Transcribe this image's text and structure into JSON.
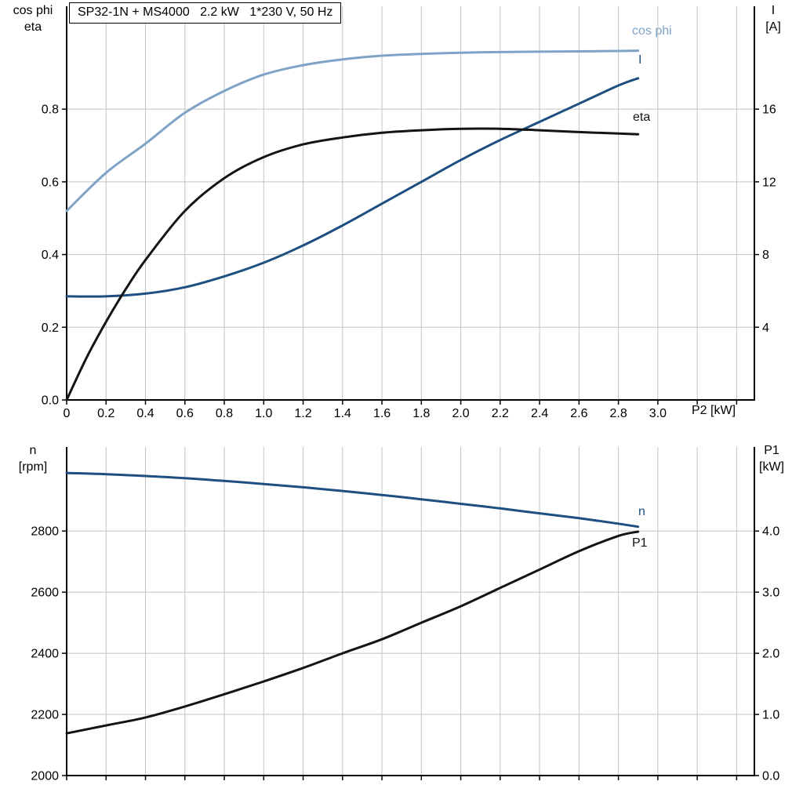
{
  "colors": {
    "light_blue": "#7fa3c6",
    "dark_blue": "#1d5080",
    "black": "#141414",
    "grid": "#c3c3c3",
    "axis": "#000000"
  },
  "chart_data": [
    {
      "id": "top",
      "type": "line",
      "title": "SP32-1N + MS4000   2.2 kW   1*230 V, 50 Hz",
      "x_axis": {
        "label": "P2 [kW]",
        "range": [
          0,
          3.49
        ],
        "ticks": [
          0,
          0.2,
          0.4,
          0.6,
          0.8,
          1.0,
          1.2,
          1.4,
          1.6,
          1.8,
          2.0,
          2.2,
          2.4,
          2.6,
          2.8,
          3.0
        ],
        "tick_labels": [
          "0",
          "0.2",
          "0.4",
          "0.6",
          "0.8",
          "1.0",
          "1.2",
          "1.4",
          "1.6",
          "1.8",
          "2.0",
          "2.2",
          "2.4",
          "2.6",
          "2.8",
          "3.0"
        ]
      },
      "y_left": {
        "label_lines": [
          "cos phi",
          "eta"
        ],
        "range": [
          0,
          1.083
        ],
        "ticks": [
          0,
          0.2,
          0.4,
          0.6,
          0.8
        ],
        "tick_labels": [
          "0.0",
          "0.2",
          "0.4",
          "0.6",
          "0.8"
        ]
      },
      "y_right": {
        "label_lines": [
          "I",
          "[A]"
        ],
        "range": [
          0,
          21.66
        ],
        "ticks": [
          4,
          8,
          12,
          16
        ],
        "tick_labels": [
          "4",
          "8",
          "12",
          "16"
        ]
      },
      "series": [
        {
          "name": "cos-phi",
          "label": "cos phi",
          "axis": "left",
          "color_key": "light_blue",
          "x": [
            0,
            0.2,
            0.4,
            0.6,
            0.8,
            1.0,
            1.2,
            1.4,
            1.6,
            1.8,
            2.0,
            2.2,
            2.4,
            2.6,
            2.8,
            2.9
          ],
          "y": [
            0.52,
            0.625,
            0.705,
            0.79,
            0.85,
            0.895,
            0.921,
            0.937,
            0.947,
            0.952,
            0.955,
            0.957,
            0.958,
            0.959,
            0.96,
            0.961
          ]
        },
        {
          "name": "current",
          "label": "I",
          "axis": "right",
          "color_key": "dark_blue",
          "x": [
            0,
            0.2,
            0.4,
            0.6,
            0.8,
            1.0,
            1.2,
            1.4,
            1.6,
            1.8,
            2.0,
            2.2,
            2.4,
            2.6,
            2.8,
            2.9
          ],
          "y": [
            5.7,
            5.7,
            5.85,
            6.2,
            6.8,
            7.55,
            8.5,
            9.6,
            10.8,
            12.0,
            13.2,
            14.3,
            15.3,
            16.3,
            17.3,
            17.7
          ]
        },
        {
          "name": "eta",
          "label": "eta",
          "axis": "left",
          "color_key": "black",
          "x": [
            0,
            0.1,
            0.2,
            0.3,
            0.4,
            0.6,
            0.8,
            1.0,
            1.2,
            1.4,
            1.6,
            1.8,
            2.0,
            2.2,
            2.4,
            2.6,
            2.8,
            2.9
          ],
          "y": [
            0,
            0.115,
            0.215,
            0.305,
            0.385,
            0.52,
            0.61,
            0.668,
            0.703,
            0.722,
            0.735,
            0.742,
            0.746,
            0.746,
            0.742,
            0.737,
            0.733,
            0.731
          ]
        }
      ]
    },
    {
      "id": "bottom",
      "type": "line",
      "title": "",
      "x_axis": {
        "label": "",
        "range": [
          0,
          3.49
        ],
        "ticks": [],
        "tick_labels": []
      },
      "y_left": {
        "label_lines": [
          "n",
          "[rpm]"
        ],
        "range": [
          2000,
          3075
        ],
        "ticks": [
          2000,
          2200,
          2400,
          2600,
          2800
        ],
        "tick_labels": [
          "2000",
          "2200",
          "2400",
          "2600",
          "2800"
        ]
      },
      "y_right": {
        "label_lines": [
          "P1",
          "[kW]"
        ],
        "range": [
          0,
          5.375
        ],
        "ticks": [
          0,
          1,
          2,
          3,
          4
        ],
        "tick_labels": [
          "0.0",
          "1.0",
          "2.0",
          "3.0",
          "4.0"
        ]
      },
      "series": [
        {
          "name": "speed",
          "label": "n",
          "axis": "left",
          "color_key": "dark_blue",
          "x": [
            0,
            0.2,
            0.4,
            0.6,
            0.8,
            1.0,
            1.2,
            1.4,
            1.6,
            1.8,
            2.0,
            2.2,
            2.4,
            2.6,
            2.8,
            2.9
          ],
          "y": [
            2990,
            2986,
            2980,
            2973,
            2964,
            2954,
            2943,
            2931,
            2918,
            2904,
            2889,
            2874,
            2858,
            2842,
            2824,
            2814
          ]
        },
        {
          "name": "p1",
          "label": "P1",
          "axis": "right",
          "color_key": "black",
          "x": [
            0,
            0.2,
            0.4,
            0.6,
            0.8,
            1.0,
            1.2,
            1.4,
            1.6,
            1.8,
            2.0,
            2.2,
            2.4,
            2.6,
            2.8,
            2.9
          ],
          "y": [
            0.69,
            0.82,
            0.95,
            1.13,
            1.33,
            1.54,
            1.76,
            2.0,
            2.23,
            2.5,
            2.77,
            3.07,
            3.37,
            3.67,
            3.92,
            3.99
          ]
        }
      ]
    }
  ]
}
